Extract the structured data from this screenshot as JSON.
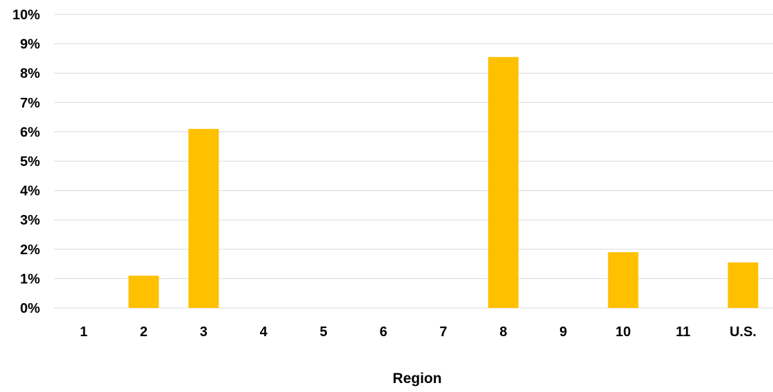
{
  "chart_data": {
    "type": "bar",
    "xlabel": "Region",
    "ylabel": "",
    "categories": [
      "1",
      "2",
      "3",
      "4",
      "5",
      "6",
      "7",
      "8",
      "9",
      "10",
      "11",
      "U.S."
    ],
    "series": [
      {
        "values": [
          0,
          1.1,
          6.1,
          0,
          0,
          0,
          0,
          8.55,
          0,
          1.9,
          0,
          1.55
        ]
      }
    ],
    "ylim": [
      0,
      10
    ],
    "yticks": [
      0,
      1,
      2,
      3,
      4,
      5,
      6,
      7,
      8,
      9,
      10
    ],
    "ytick_labels": [
      "0%",
      "1%",
      "2%",
      "3%",
      "4%",
      "5%",
      "6%",
      "7%",
      "8%",
      "9%",
      "10%"
    ],
    "grid": true,
    "legend": "none",
    "colors": {
      "bar": "#FFC000",
      "grid": "#D9D9D9",
      "text": "#000000"
    }
  }
}
